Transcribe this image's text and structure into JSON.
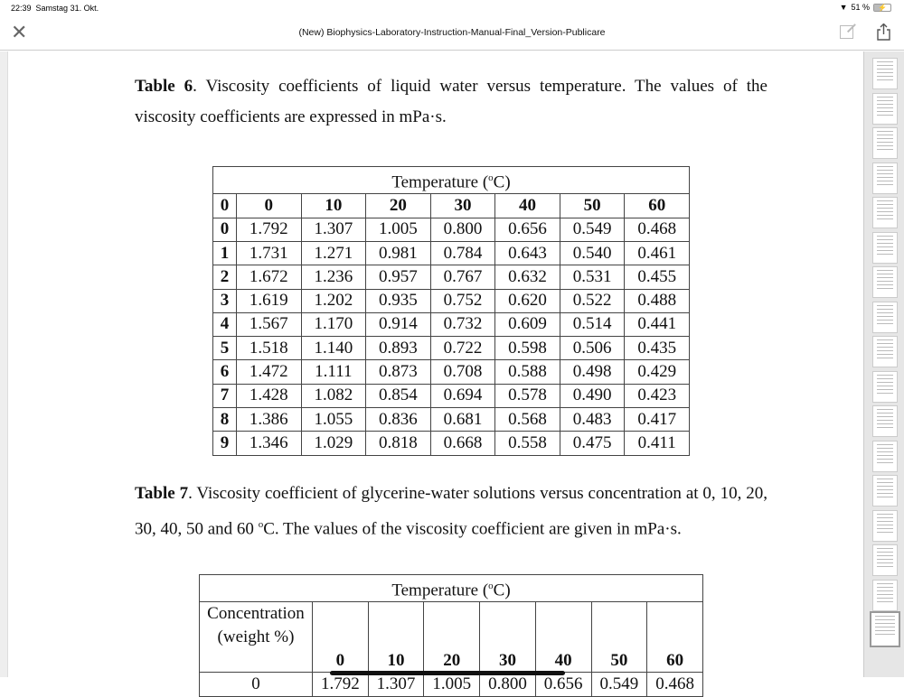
{
  "status": {
    "time": "22:39",
    "date": "Samstag 31. Okt.",
    "battery": "51 %",
    "battery_level": 0.51
  },
  "nav": {
    "title": "(New) Biophysics-Laboratory-Instruction-Manual-Final_Version-Publicare"
  },
  "doc": {
    "table6_caption": {
      "label": "Table 6",
      "text": ". Viscosity coefficients of liquid water versus temperature. The values of the viscosity coefficients are expressed in mPa·s."
    },
    "table6": {
      "header": "Temperature (",
      "header_sup": "o",
      "header_end": "C)",
      "columns": [
        "0",
        "0",
        "10",
        "20",
        "30",
        "40",
        "50",
        "60"
      ],
      "rows": [
        [
          "0",
          "1.792",
          "1.307",
          "1.005",
          "0.800",
          "0.656",
          "0.549",
          "0.468"
        ],
        [
          "1",
          "1.731",
          "1.271",
          "0.981",
          "0.784",
          "0.643",
          "0.540",
          "0.461"
        ],
        [
          "2",
          "1.672",
          "1.236",
          "0.957",
          "0.767",
          "0.632",
          "0.531",
          "0.455"
        ],
        [
          "3",
          "1.619",
          "1.202",
          "0.935",
          "0.752",
          "0.620",
          "0.522",
          "0.488"
        ],
        [
          "4",
          "1.567",
          "1.170",
          "0.914",
          "0.732",
          "0.609",
          "0.514",
          "0.441"
        ],
        [
          "5",
          "1.518",
          "1.140",
          "0.893",
          "0.722",
          "0.598",
          "0.506",
          "0.435"
        ],
        [
          "6",
          "1.472",
          "1.111",
          "0.873",
          "0.708",
          "0.588",
          "0.498",
          "0.429"
        ],
        [
          "7",
          "1.428",
          "1.082",
          "0.854",
          "0.694",
          "0.578",
          "0.490",
          "0.423"
        ],
        [
          "8",
          "1.386",
          "1.055",
          "0.836",
          "0.681",
          "0.568",
          "0.483",
          "0.417"
        ],
        [
          "9",
          "1.346",
          "1.029",
          "0.818",
          "0.668",
          "0.558",
          "0.475",
          "0.411"
        ]
      ]
    },
    "table7_caption": {
      "label": "Table 7",
      "text": ". Viscosity coefficient of glycerine-water solutions versus concentration at 0, 10, 20, 30, 40, 50 and 60 ",
      "sup": "o",
      "text_end": "C. The values of the viscosity coefficient are given in mPa·s."
    },
    "table7": {
      "header": "Temperature (",
      "header_sup": "o",
      "header_end": "C)",
      "row_header_line1": "Concentration",
      "row_header_line2": "(weight %)",
      "columns": [
        "0",
        "10",
        "20",
        "30",
        "40",
        "50",
        "60"
      ],
      "rows": [
        [
          "0",
          "1.792",
          "1.307",
          "1.005",
          "0.800",
          "0.656",
          "0.549",
          "0.468"
        ]
      ]
    }
  }
}
